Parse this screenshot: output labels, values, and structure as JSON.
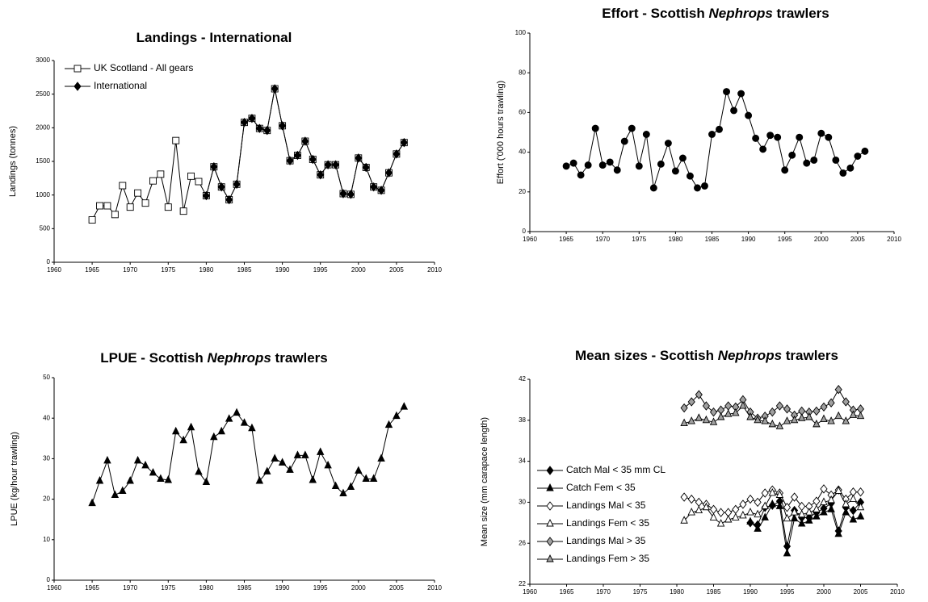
{
  "chart_data": [
    {
      "type": "line",
      "title": [
        "Landings - International"
      ],
      "ylabel": "Landings (tonnes)",
      "x": [
        1965,
        1966,
        1967,
        1968,
        1969,
        1970,
        1971,
        1972,
        1973,
        1974,
        1975,
        1976,
        1977,
        1978,
        1979,
        1980,
        1981,
        1982,
        1983,
        1984,
        1985,
        1986,
        1987,
        1988,
        1989,
        1990,
        1991,
        1992,
        1993,
        1994,
        1995,
        1996,
        1997,
        1998,
        1999,
        2000,
        2001,
        2002,
        2003,
        2004,
        2005,
        2006
      ],
      "series": [
        {
          "name": "UK Scotland - All gears",
          "color": "#000000",
          "marker": "square",
          "fill": "#ffffff",
          "values": [
            630,
            840,
            840,
            710,
            1140,
            820,
            1030,
            880,
            1210,
            1310,
            820,
            1810,
            760,
            1280,
            1200,
            990,
            1420,
            1120,
            930,
            1160,
            2080,
            2140,
            1990,
            1960,
            2580,
            2030,
            1510,
            1590,
            1800,
            1530,
            1300,
            1450,
            1450,
            1020,
            1010,
            1550,
            1410,
            1120,
            1070,
            1330,
            1610,
            1780
          ]
        },
        {
          "name": "International",
          "color": "#000000",
          "marker": "diamond",
          "fill": "#000000",
          "values": [
            null,
            null,
            null,
            null,
            null,
            null,
            null,
            null,
            null,
            null,
            null,
            null,
            null,
            null,
            null,
            990,
            1420,
            1120,
            930,
            1160,
            2080,
            2140,
            1990,
            1960,
            2580,
            2030,
            1510,
            1590,
            1800,
            1530,
            1300,
            1450,
            1450,
            1020,
            1010,
            1550,
            1410,
            1120,
            1070,
            1330,
            1610,
            1780
          ]
        }
      ],
      "xlim": [
        1960,
        2010
      ],
      "xticks": [
        1960,
        1965,
        1970,
        1975,
        1980,
        1985,
        1990,
        1995,
        2000,
        2005,
        2010
      ],
      "ylim": [
        0,
        3000
      ],
      "yticks": [
        0,
        500,
        1000,
        1500,
        2000,
        2500,
        3000
      ],
      "legend": "upper left"
    },
    {
      "type": "line",
      "title": [
        "Effort - Scottish ",
        "Nephrops",
        " trawlers"
      ],
      "ylabel": "Effort ('000 hours trawling)",
      "x": [
        1965,
        1966,
        1967,
        1968,
        1969,
        1970,
        1971,
        1972,
        1973,
        1974,
        1975,
        1976,
        1977,
        1978,
        1979,
        1980,
        1981,
        1982,
        1983,
        1984,
        1985,
        1986,
        1987,
        1988,
        1989,
        1990,
        1991,
        1992,
        1993,
        1994,
        1995,
        1996,
        1997,
        1998,
        1999,
        2000,
        2001,
        2002,
        2003,
        2004,
        2005,
        2006
      ],
      "series": [
        {
          "color": "#000000",
          "marker": "circle",
          "fill": "#000000",
          "values": [
            33,
            34.5,
            28.5,
            33.5,
            52,
            33.5,
            35,
            31,
            45.5,
            52,
            33,
            49,
            22,
            34,
            44.5,
            30.5,
            37,
            28,
            22,
            23,
            49,
            51.5,
            70.5,
            61,
            69.5,
            58.5,
            47,
            41.5,
            48.5,
            47.5,
            31,
            38.5,
            47.5,
            34.5,
            36,
            49.5,
            47.5,
            36,
            29.5,
            32,
            38,
            40.5
          ]
        }
      ],
      "xlim": [
        1960,
        2010
      ],
      "xticks": [
        1960,
        1965,
        1970,
        1975,
        1980,
        1985,
        1990,
        1995,
        2000,
        2005,
        2010
      ],
      "ylim": [
        0,
        100
      ],
      "yticks": [
        0,
        20,
        40,
        60,
        80,
        100
      ]
    },
    {
      "type": "line",
      "title": [
        "LPUE - Scottish ",
        "Nephrops",
        " trawlers"
      ],
      "ylabel": "LPUE (kg/hour trawling)",
      "x": [
        1965,
        1966,
        1967,
        1968,
        1969,
        1970,
        1971,
        1972,
        1973,
        1974,
        1975,
        1976,
        1977,
        1978,
        1979,
        1980,
        1981,
        1982,
        1983,
        1984,
        1985,
        1986,
        1987,
        1988,
        1989,
        1990,
        1991,
        1992,
        1993,
        1994,
        1995,
        1996,
        1997,
        1998,
        1999,
        2000,
        2001,
        2002,
        2003,
        2004,
        2005,
        2006
      ],
      "series": [
        {
          "color": "#000000",
          "marker": "triangle",
          "fill": "#000000",
          "values": [
            19,
            24.5,
            29.5,
            21,
            22,
            24.5,
            29.5,
            28.3,
            26.5,
            25,
            24.7,
            36.7,
            34.5,
            37.7,
            26.7,
            24.2,
            35.3,
            36.7,
            39.8,
            41.3,
            38.8,
            37.5,
            24.5,
            26.8,
            30,
            29,
            27.2,
            30.8,
            30.8,
            24.7,
            31.6,
            28.3,
            23.2,
            21.4,
            23,
            27,
            25,
            25,
            30,
            38.3,
            40.5,
            42.8
          ]
        }
      ],
      "xlim": [
        1960,
        2010
      ],
      "xticks": [
        1960,
        1965,
        1970,
        1975,
        1980,
        1985,
        1990,
        1995,
        2000,
        2005,
        2010
      ],
      "ylim": [
        0,
        50
      ],
      "yticks": [
        0,
        10,
        20,
        30,
        40,
        50
      ]
    },
    {
      "type": "line",
      "title": [
        "Mean sizes - Scottish ",
        "Nephrops",
        " trawlers"
      ],
      "ylabel": "Mean size (mm carapace length)",
      "x": [
        1981,
        1982,
        1983,
        1984,
        1985,
        1986,
        1987,
        1988,
        1989,
        1990,
        1991,
        1992,
        1993,
        1994,
        1995,
        1996,
        1997,
        1998,
        1999,
        2000,
        2001,
        2002,
        2003,
        2004,
        2005
      ],
      "series": [
        {
          "name": "Catch Mal < 35 mm CL",
          "color": "#000000",
          "marker": "diamond",
          "fill": "#000000",
          "values": [
            null,
            null,
            null,
            null,
            null,
            null,
            null,
            null,
            null,
            28.0,
            27.8,
            29.5,
            29.7,
            30.1,
            25.7,
            29.2,
            28.5,
            28.5,
            29.0,
            29.4,
            29.9,
            27.2,
            29.5,
            29.2,
            30.0
          ]
        },
        {
          "name": "Catch Fem < 35",
          "color": "#000000",
          "marker": "triangle",
          "fill": "#000000",
          "values": [
            null,
            null,
            null,
            null,
            null,
            null,
            null,
            null,
            null,
            28.1,
            27.4,
            28.5,
            29.8,
            29.6,
            25.0,
            28.4,
            27.9,
            28.2,
            28.6,
            29.0,
            29.3,
            26.9,
            29.0,
            28.3,
            28.6
          ]
        },
        {
          "name": "Landings Mal < 35",
          "color": "#000000",
          "marker": "diamond",
          "fill": "#ffffff",
          "values": [
            30.5,
            30.3,
            30.0,
            29.8,
            29.3,
            29.0,
            29.0,
            29.3,
            29.8,
            30.3,
            30.0,
            30.9,
            31.2,
            30.9,
            29.5,
            30.5,
            29.6,
            29.6,
            30.1,
            31.3,
            30.7,
            31.2,
            30.3,
            31.0,
            31.0
          ]
        },
        {
          "name": "Landings Fem < 35",
          "color": "#000000",
          "marker": "triangle",
          "fill": "#ffffff",
          "values": [
            28.2,
            29.0,
            29.2,
            29.5,
            28.5,
            27.9,
            28.3,
            28.5,
            28.7,
            29.0,
            28.8,
            29.6,
            30.9,
            30.7,
            28.4,
            29.0,
            28.8,
            29.0,
            29.3,
            30.0,
            30.2,
            31.1,
            29.8,
            30.3,
            29.5
          ]
        },
        {
          "name": "Landings Mal > 35",
          "color": "#000000",
          "marker": "diamond",
          "fill": "#a0a0a0",
          "values": [
            39.2,
            39.8,
            40.5,
            39.4,
            38.8,
            39.0,
            39.4,
            39.3,
            40.0,
            38.8,
            38.2,
            38.4,
            38.8,
            39.4,
            39.1,
            38.5,
            38.9,
            38.8,
            38.9,
            39.3,
            39.7,
            41.0,
            39.8,
            39.0,
            39.1
          ]
        },
        {
          "name": "Landings Fem > 35",
          "color": "#000000",
          "marker": "triangle",
          "fill": "#a0a0a0",
          "values": [
            37.7,
            37.9,
            38.2,
            38.0,
            37.8,
            38.3,
            38.6,
            38.7,
            39.4,
            38.3,
            38.0,
            37.9,
            37.6,
            37.4,
            37.9,
            38.0,
            38.2,
            38.3,
            37.6,
            38.1,
            37.9,
            38.4,
            37.9,
            38.5,
            38.4
          ]
        }
      ],
      "xlim": [
        1960,
        2010
      ],
      "xticks": [
        1960,
        1965,
        1970,
        1975,
        1980,
        1985,
        1990,
        1995,
        2000,
        2005,
        2010
      ],
      "ylim": [
        22,
        42
      ],
      "yticks": [
        22,
        26,
        30,
        34,
        38,
        42
      ],
      "legend": "center left"
    }
  ]
}
